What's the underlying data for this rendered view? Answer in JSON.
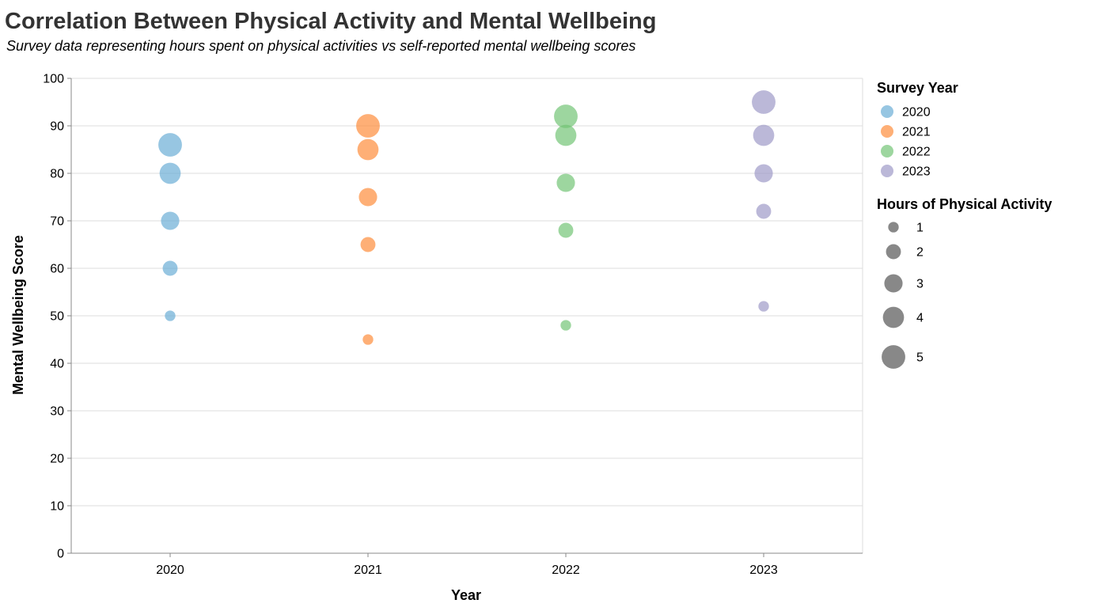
{
  "chart_data": {
    "type": "scatter",
    "title": "Correlation Between Physical Activity and Mental Wellbeing",
    "subtitle": "Survey data representing hours spent on physical activities vs self-reported mental wellbeing scores",
    "xlabel": "Year",
    "ylabel": "Mental Wellbeing Score",
    "categories": [
      "2020",
      "2021",
      "2022",
      "2023"
    ],
    "ylim": [
      0,
      100
    ],
    "yticks": [
      0,
      10,
      20,
      30,
      40,
      50,
      60,
      70,
      80,
      90,
      100
    ],
    "grid": true,
    "legend_position": "right",
    "color_legend": {
      "title": "Survey Year",
      "entries": [
        {
          "label": "2020",
          "color": "#6baed6"
        },
        {
          "label": "2021",
          "color": "#fd8d3c"
        },
        {
          "label": "2022",
          "color": "#74c476"
        },
        {
          "label": "2023",
          "color": "#9e9ac8"
        }
      ]
    },
    "size_legend": {
      "title": "Hours of Physical Activity",
      "values": [
        1,
        2,
        3,
        4,
        5
      ]
    },
    "series": [
      {
        "year": "2020",
        "points": [
          {
            "hours": 1,
            "score": 50
          },
          {
            "hours": 2,
            "score": 60
          },
          {
            "hours": 3,
            "score": 70
          },
          {
            "hours": 4,
            "score": 80
          },
          {
            "hours": 5,
            "score": 86
          }
        ]
      },
      {
        "year": "2021",
        "points": [
          {
            "hours": 1,
            "score": 45
          },
          {
            "hours": 2,
            "score": 65
          },
          {
            "hours": 3,
            "score": 75
          },
          {
            "hours": 4,
            "score": 85
          },
          {
            "hours": 5,
            "score": 90
          }
        ]
      },
      {
        "year": "2022",
        "points": [
          {
            "hours": 1,
            "score": 48
          },
          {
            "hours": 2,
            "score": 68
          },
          {
            "hours": 3,
            "score": 78
          },
          {
            "hours": 4,
            "score": 88
          },
          {
            "hours": 5,
            "score": 92
          }
        ]
      },
      {
        "year": "2023",
        "points": [
          {
            "hours": 1,
            "score": 52
          },
          {
            "hours": 2,
            "score": 72
          },
          {
            "hours": 3,
            "score": 80
          },
          {
            "hours": 4,
            "score": 88
          },
          {
            "hours": 5,
            "score": 95
          }
        ]
      }
    ]
  }
}
